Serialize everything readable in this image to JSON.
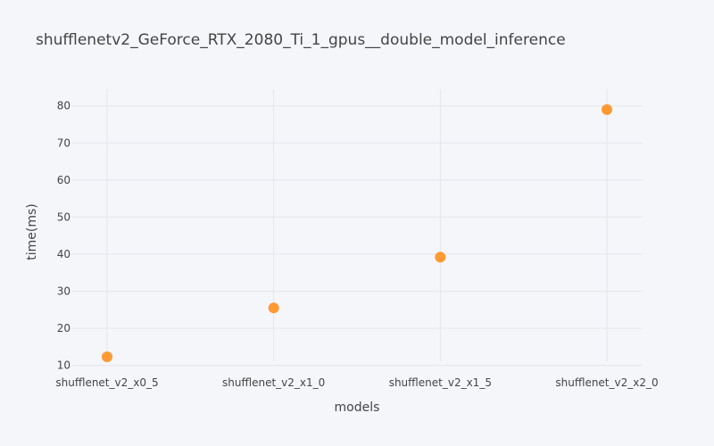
{
  "chart_data": {
    "type": "scatter",
    "title": "shufflenetv2_GeForce_RTX_2080_Ti_1_gpus__double_model_inference",
    "xlabel": "models",
    "ylabel": "time(ms)",
    "categories": [
      "shufflenet_v2_x0_5",
      "shufflenet_v2_x1_0",
      "shufflenet_v2_x1_5",
      "shufflenet_v2_x2_0"
    ],
    "values": [
      12.3,
      25.5,
      39.2,
      79.0
    ],
    "y_ticks": [
      10,
      20,
      30,
      40,
      50,
      60,
      70,
      80
    ],
    "ylim": [
      7.5,
      84.5
    ],
    "grid": true,
    "legend": "none",
    "marker_color": "#ff9933"
  }
}
